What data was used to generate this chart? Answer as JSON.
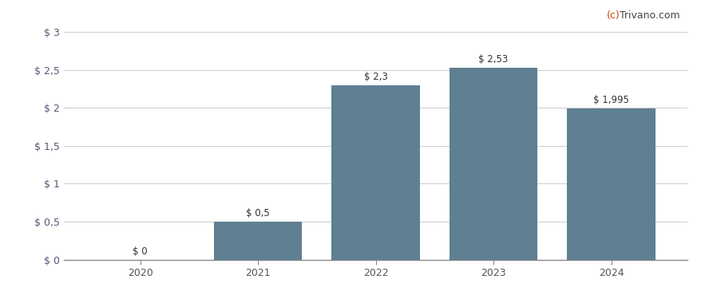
{
  "years": [
    2020,
    2021,
    2022,
    2023,
    2024
  ],
  "values": [
    0.0,
    0.5,
    2.3,
    2.53,
    1.995
  ],
  "labels": [
    "$ 0",
    "$ 0,5",
    "$ 2,3",
    "$ 2,53",
    "$ 1,995"
  ],
  "bar_color": "#5f7f93",
  "background_color": "#ffffff",
  "grid_color": "#cccccc",
  "yticks": [
    0.0,
    0.5,
    1.0,
    1.5,
    2.0,
    2.5,
    3.0
  ],
  "ytick_labels": [
    "$ 0",
    "$ 0,5",
    "$ 1",
    "$ 1,5",
    "$ 2",
    "$ 2,5",
    "$ 3"
  ],
  "ylim": [
    0,
    3.15
  ],
  "watermark_c": "(c)",
  "watermark_rest": " Trivano.com",
  "watermark_color_c": "#cc4400",
  "watermark_color_rest": "#444444",
  "label_fontsize": 8.5,
  "tick_fontsize": 9,
  "watermark_fontsize": 9,
  "bar_width": 0.75,
  "xlim": [
    2019.35,
    2024.65
  ]
}
